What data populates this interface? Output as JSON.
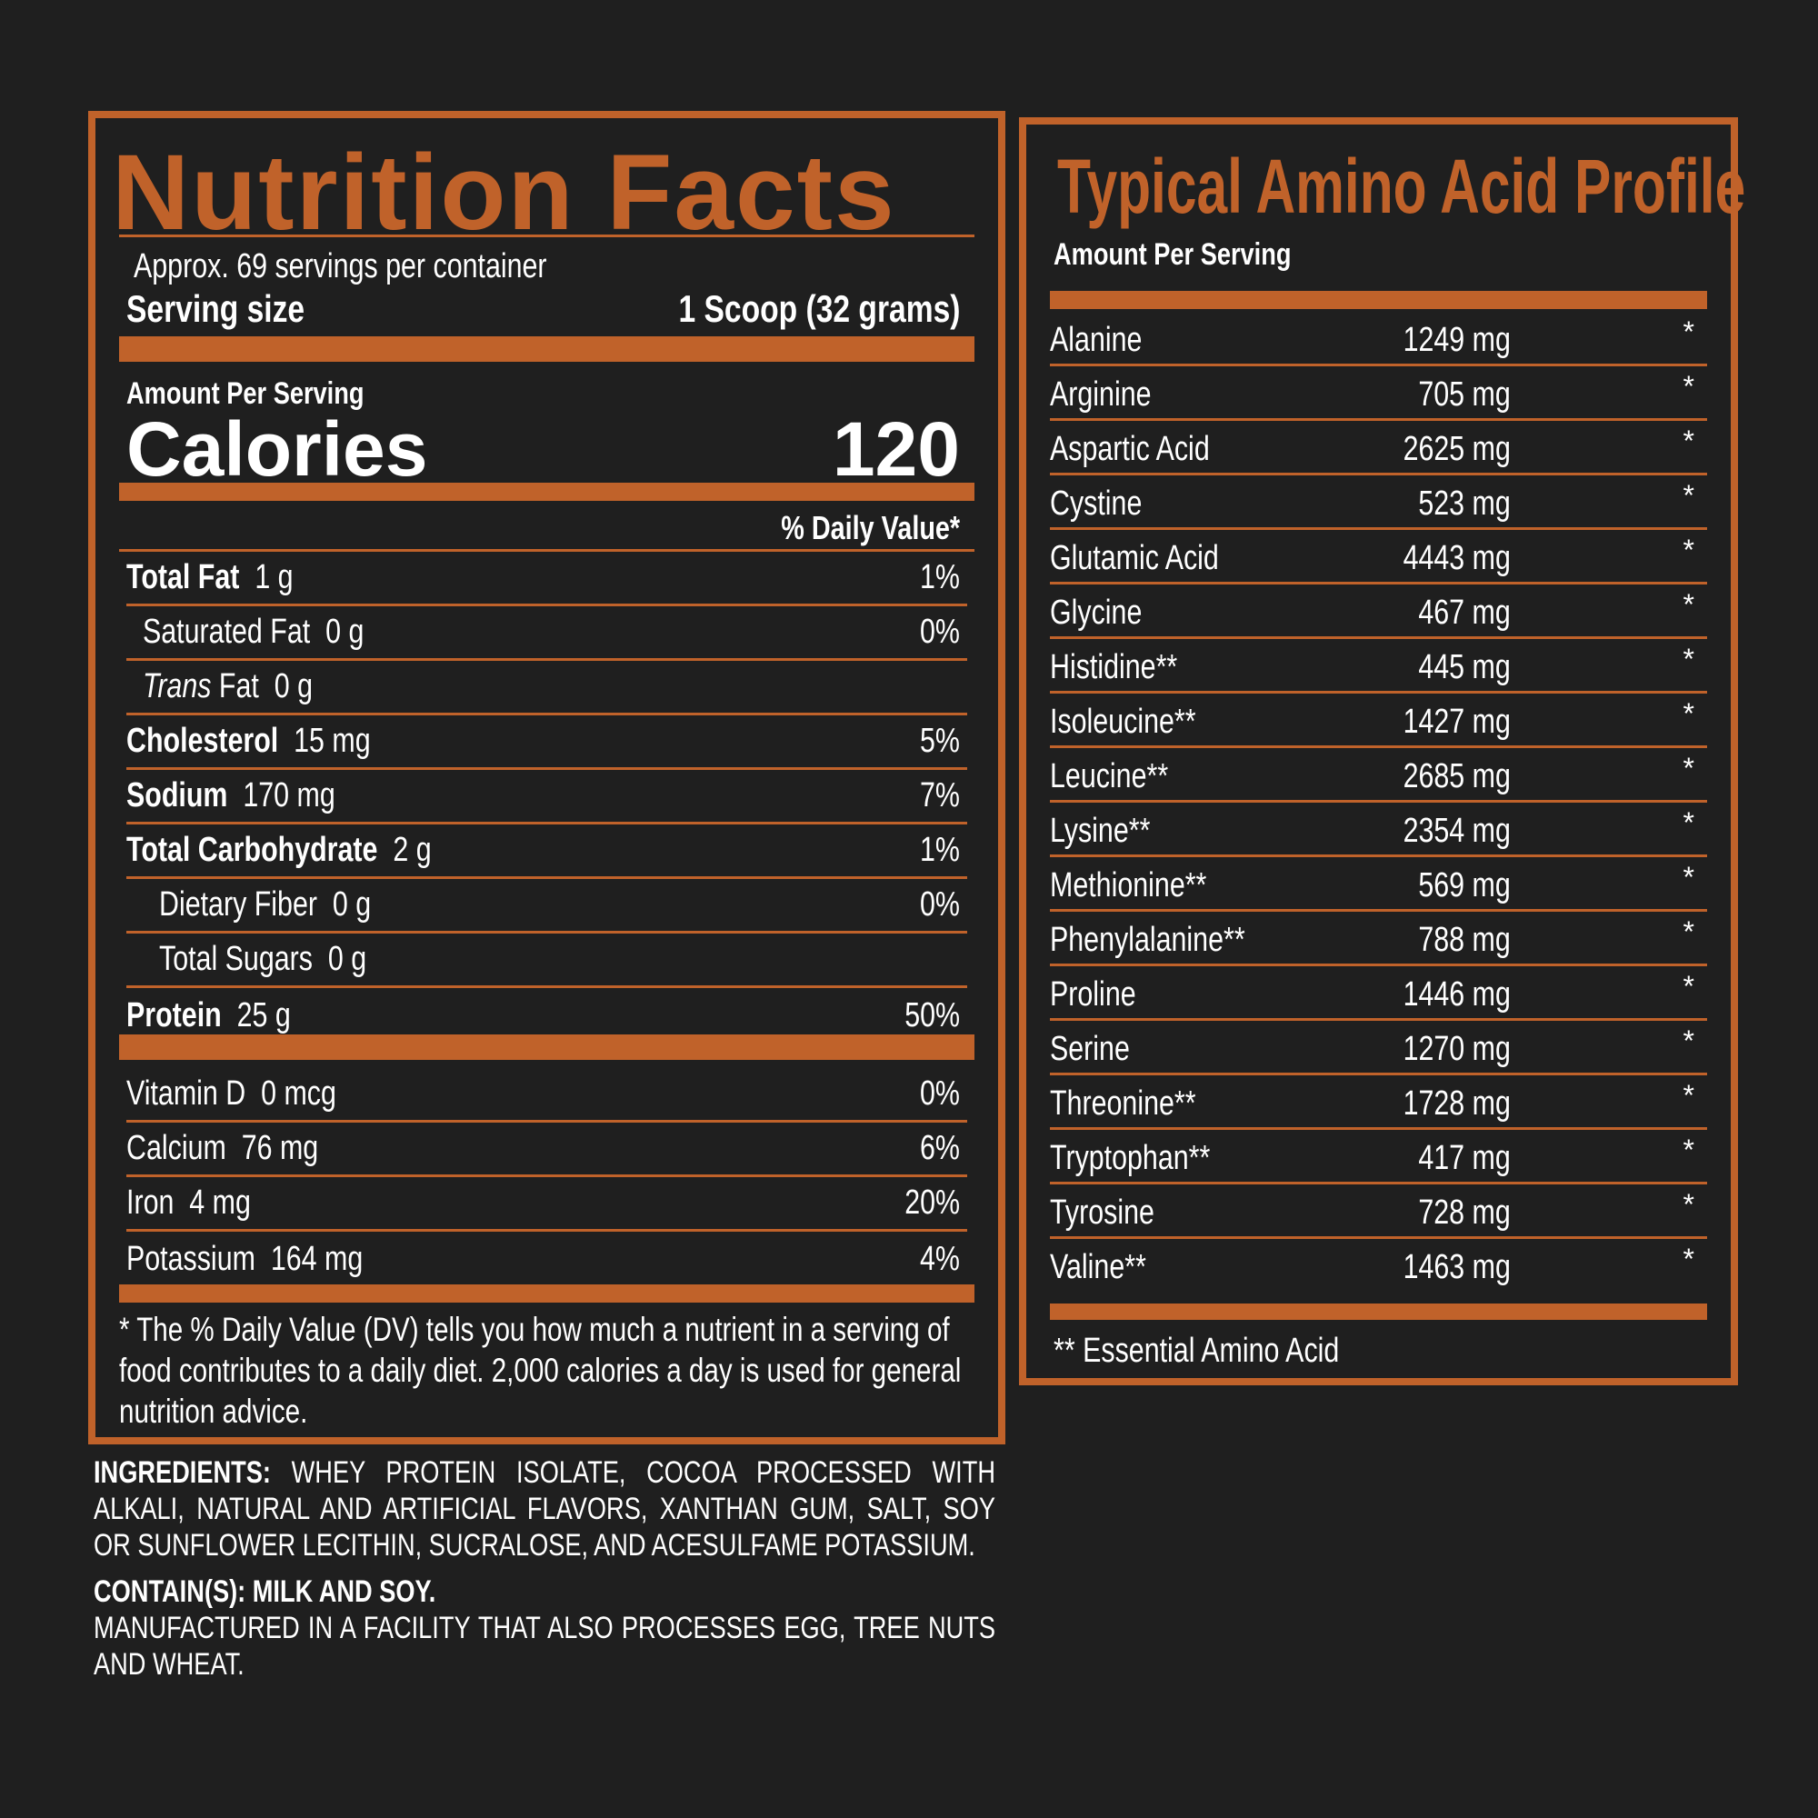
{
  "colors": {
    "accent": "#c0622a",
    "background": "#1f1f1f",
    "text": "#ffffff"
  },
  "nutrition": {
    "title": "Nutrition Facts",
    "servings": "Approx. 69 servings per container",
    "serving_size_label": "Serving size",
    "serving_size_value": "1 Scoop (32 grams)",
    "amount_per_serving": "Amount Per Serving",
    "calories_label": "Calories",
    "calories_value": "120",
    "daily_value_header": "% Daily Value*",
    "rows": [
      {
        "name": "Total Fat",
        "amount": "1 g",
        "dv": "1%",
        "bold": true,
        "indent": 0
      },
      {
        "name": "Saturated Fat",
        "amount": "0 g",
        "dv": "0%",
        "bold": false,
        "indent": 1
      },
      {
        "name": "Trans",
        "name_suffix": " Fat",
        "amount": "0 g",
        "dv": "",
        "bold": false,
        "indent": 1,
        "italic": true
      },
      {
        "name": "Cholesterol",
        "amount": "15 mg",
        "dv": "5%",
        "bold": true,
        "indent": 0
      },
      {
        "name": "Sodium",
        "amount": "170 mg",
        "dv": "7%",
        "bold": true,
        "indent": 0
      },
      {
        "name": "Total Carbohydrate",
        "amount": "2 g",
        "dv": "1%",
        "bold": true,
        "indent": 0
      },
      {
        "name": "Dietary Fiber",
        "amount": "0 g",
        "dv": "0%",
        "bold": false,
        "indent": 2
      },
      {
        "name": "Total Sugars",
        "amount": "0 g",
        "dv": "",
        "bold": false,
        "indent": 2
      },
      {
        "name": "Protein",
        "amount": "25 g",
        "dv": "50%",
        "bold": true,
        "indent": 0
      }
    ],
    "minerals": [
      {
        "name": "Vitamin D",
        "amount": "0 mcg",
        "dv": "0%"
      },
      {
        "name": "Calcium",
        "amount": "76 mg",
        "dv": "6%"
      },
      {
        "name": "Iron",
        "amount": "4 mg",
        "dv": "20%"
      },
      {
        "name": "Potassium",
        "amount": "164 mg",
        "dv": "4%"
      }
    ],
    "footnote": "* The % Daily Value (DV) tells you how much a nutrient in a serving of food contributes to a daily diet. 2,000 calories a day is used for general nutrition advice."
  },
  "ingredients": {
    "label": "INGREDIENTS:",
    "text": " WHEY PROTEIN ISOLATE, COCOA PROCESSED WITH ALKALI, NATURAL AND ARTIFICIAL FLAVORS, XANTHAN GUM, SALT, SOY OR SUNFLOWER LECITHIN, SUCRALOSE, AND ACESULFAME POTASSIUM.",
    "contains": "CONTAIN(S): MILK AND SOY.",
    "facility": "MANUFACTURED IN A FACILITY THAT ALSO PROCESSES EGG, TREE NUTS AND WHEAT."
  },
  "amino": {
    "title": "Typical Amino Acid Profile",
    "amount_per_serving": "Amount Per Serving",
    "rows": [
      {
        "name": "Alanine",
        "amount": "1249 mg",
        "dv": "*"
      },
      {
        "name": "Arginine",
        "amount": "705 mg",
        "dv": "*"
      },
      {
        "name": "Aspartic Acid",
        "amount": "2625 mg",
        "dv": "*"
      },
      {
        "name": "Cystine",
        "amount": "523 mg",
        "dv": "*"
      },
      {
        "name": "Glutamic Acid",
        "amount": "4443 mg",
        "dv": "*"
      },
      {
        "name": "Glycine",
        "amount": "467 mg",
        "dv": "*"
      },
      {
        "name": "Histidine**",
        "amount": "445 mg",
        "dv": "*"
      },
      {
        "name": "Isoleucine**",
        "amount": "1427 mg",
        "dv": "*"
      },
      {
        "name": "Leucine**",
        "amount": "2685 mg",
        "dv": "*"
      },
      {
        "name": "Lysine**",
        "amount": "2354 mg",
        "dv": "*"
      },
      {
        "name": "Methionine**",
        "amount": "569 mg",
        "dv": "*"
      },
      {
        "name": "Phenylalanine**",
        "amount": "788 mg",
        "dv": "*"
      },
      {
        "name": "Proline",
        "amount": "1446 mg",
        "dv": "*"
      },
      {
        "name": "Serine",
        "amount": "1270 mg",
        "dv": "*"
      },
      {
        "name": "Threonine**",
        "amount": "1728 mg",
        "dv": "*"
      },
      {
        "name": "Tryptophan**",
        "amount": "417 mg",
        "dv": "*"
      },
      {
        "name": "Tyrosine",
        "amount": "728 mg",
        "dv": "*"
      },
      {
        "name": "Valine**",
        "amount": "1463 mg",
        "dv": "*"
      }
    ],
    "footnote": "** Essential Amino Acid"
  }
}
